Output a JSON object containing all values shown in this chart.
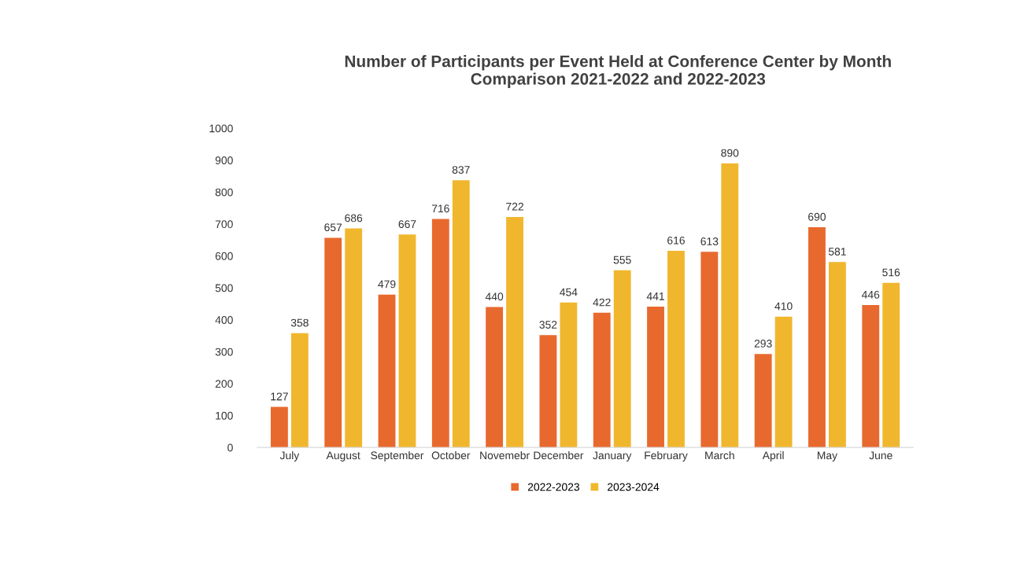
{
  "chart_data": {
    "type": "bar",
    "title": "Number of Participants per Event Held at Conference Center by Month\nComparison 2021-2022 and 2022-2023",
    "categories": [
      "July",
      "August",
      "September",
      "October",
      "Novemebr",
      "December",
      "January",
      "February",
      "March",
      "April",
      "May",
      "June"
    ],
    "series": [
      {
        "name": "2022-2023",
        "color": "#e8692e",
        "values": [
          127,
          657,
          479,
          716,
          440,
          352,
          422,
          441,
          613,
          293,
          690,
          446
        ]
      },
      {
        "name": "2023-2024",
        "color": "#f0b72e",
        "values": [
          358,
          686,
          667,
          837,
          722,
          454,
          555,
          616,
          890,
          410,
          581,
          516
        ]
      }
    ],
    "ylim": [
      0,
      1000
    ],
    "yticks": [
      0,
      100,
      200,
      300,
      400,
      500,
      600,
      700,
      800,
      900,
      1000
    ],
    "data_labels": true,
    "legend": "bottom",
    "grid": false
  }
}
